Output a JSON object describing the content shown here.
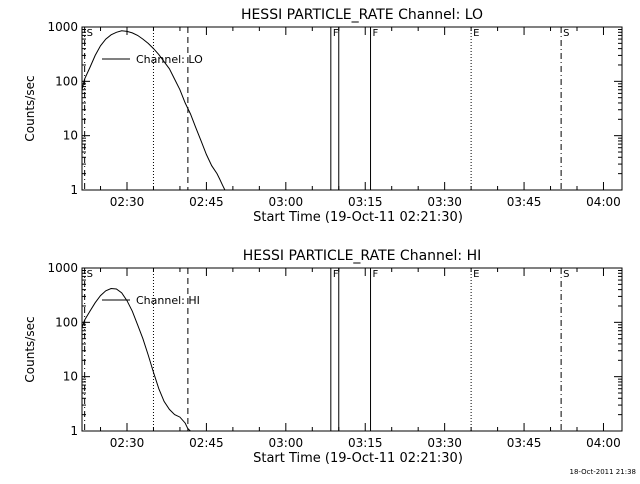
{
  "chart_data": [
    {
      "type": "line",
      "title": "HESSI PARTICLE_RATE Channel: LO",
      "xlabel": "Start Time (19-Oct-11 02:21:30)",
      "ylabel": "Counts/sec",
      "yscale": "log",
      "xlim": [
        "02:21:30",
        "04:03:30"
      ],
      "ylim": [
        1,
        1000
      ],
      "x_ticks": [
        "02:30",
        "02:45",
        "03:00",
        "03:15",
        "03:30",
        "03:45",
        "04:00"
      ],
      "y_ticks": [
        "1",
        "10",
        "100",
        "1000"
      ],
      "legend": {
        "position": "top-left",
        "entries": [
          "Channel: LO"
        ]
      },
      "series": [
        {
          "name": "Channel: LO",
          "x": [
            "02:21:30",
            "02:22:00",
            "02:23:00",
            "02:24:00",
            "02:25:00",
            "02:26:00",
            "02:27:00",
            "02:28:00",
            "02:29:00",
            "02:30:00",
            "02:31:00",
            "02:32:00",
            "02:33:00",
            "02:34:00",
            "02:35:00",
            "02:36:00",
            "02:37:00",
            "02:38:00",
            "02:39:00",
            "02:40:00",
            "02:41:00",
            "02:42:00",
            "02:43:00",
            "02:44:00",
            "02:45:00",
            "02:46:00",
            "02:47:00",
            "02:47:30",
            "02:48:00",
            "02:48:30"
          ],
          "y": [
            70,
            110,
            180,
            300,
            450,
            600,
            720,
            800,
            850,
            830,
            780,
            700,
            600,
            500,
            400,
            310,
            230,
            170,
            110,
            70,
            40,
            25,
            14,
            8,
            4.5,
            2.8,
            2.0,
            1.6,
            1.25,
            1.0
          ]
        }
      ],
      "markers": [
        {
          "label": "S",
          "time": "02:22:00",
          "style": "dash-dot"
        },
        {
          "label": "",
          "time": "02:35:00",
          "style": "dotted"
        },
        {
          "label": "",
          "time": "02:41:30",
          "style": "dashed"
        },
        {
          "label": "F",
          "time": "03:08:30",
          "style": "solid"
        },
        {
          "label": "",
          "time": "03:10:00",
          "style": "solid"
        },
        {
          "label": "F",
          "time": "03:16:00",
          "style": "solid"
        },
        {
          "label": "E",
          "time": "03:35:00",
          "style": "dotted"
        },
        {
          "label": "S",
          "time": "03:52:00",
          "style": "dash-dot"
        }
      ]
    },
    {
      "type": "line",
      "title": "HESSI PARTICLE_RATE Channel: HI",
      "xlabel": "Start Time (19-Oct-11 02:21:30)",
      "ylabel": "Counts/sec",
      "yscale": "log",
      "xlim": [
        "02:21:30",
        "04:03:30"
      ],
      "ylim": [
        1,
        1000
      ],
      "x_ticks": [
        "02:30",
        "02:45",
        "03:00",
        "03:15",
        "03:30",
        "03:45",
        "04:00"
      ],
      "y_ticks": [
        "1",
        "10",
        "100",
        "1000"
      ],
      "legend": {
        "position": "top-left",
        "entries": [
          "Channel: HI"
        ]
      },
      "series": [
        {
          "name": "Channel: HI",
          "x": [
            "02:21:30",
            "02:22:00",
            "02:23:00",
            "02:24:00",
            "02:25:00",
            "02:26:00",
            "02:27:00",
            "02:28:00",
            "02:29:00",
            "02:30:00",
            "02:31:00",
            "02:32:00",
            "02:33:00",
            "02:34:00",
            "02:35:00",
            "02:36:00",
            "02:37:00",
            "02:38:00",
            "02:39:00",
            "02:40:00",
            "02:41:00",
            "02:41:30",
            "02:42:00"
          ],
          "y": [
            80,
            110,
            160,
            230,
            310,
            380,
            420,
            410,
            350,
            250,
            160,
            90,
            50,
            25,
            12,
            6,
            3.5,
            2.5,
            2.0,
            1.8,
            1.4,
            1.1,
            1.0
          ]
        }
      ],
      "markers": [
        {
          "label": "S",
          "time": "02:22:00",
          "style": "dash-dot"
        },
        {
          "label": "",
          "time": "02:35:00",
          "style": "dotted"
        },
        {
          "label": "",
          "time": "02:41:30",
          "style": "dashed"
        },
        {
          "label": "F",
          "time": "03:08:30",
          "style": "solid"
        },
        {
          "label": "",
          "time": "03:10:00",
          "style": "solid"
        },
        {
          "label": "F",
          "time": "03:16:00",
          "style": "solid"
        },
        {
          "label": "E",
          "time": "03:35:00",
          "style": "dotted"
        },
        {
          "label": "S",
          "time": "03:52:00",
          "style": "dash-dot"
        }
      ]
    }
  ],
  "footer_timestamp": "18-Oct-2011 21:38"
}
